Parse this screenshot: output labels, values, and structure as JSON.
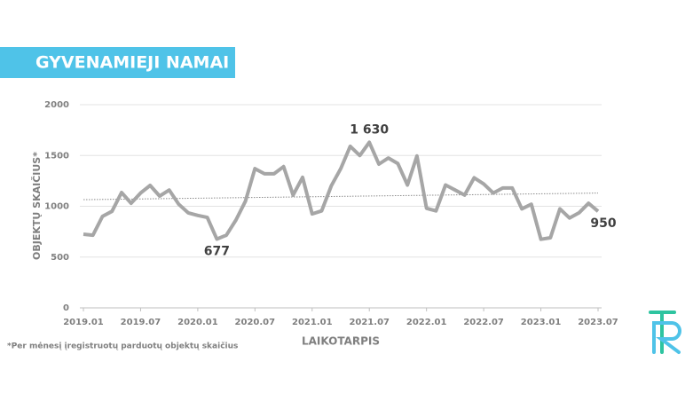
{
  "chart_data": {
    "type": "line",
    "title": "GYVENAMIEJI NAMAI",
    "x_label": "LAIKOTARPIS",
    "y_label": "OBJEKTŲ SKAIČIUS*",
    "footnote": "*Per mėnesį įregistruotų parduotų objektų skaičius",
    "categories": [
      "2019.01",
      null,
      null,
      null,
      null,
      null,
      "2019.07",
      null,
      null,
      null,
      null,
      null,
      "2020.01",
      null,
      null,
      null,
      null,
      null,
      "2020.07",
      null,
      null,
      null,
      null,
      null,
      "2021.01",
      null,
      null,
      null,
      null,
      null,
      "2021.07",
      null,
      null,
      null,
      null,
      null,
      "2022.01",
      null,
      null,
      null,
      null,
      null,
      "2022.07",
      null,
      null,
      null,
      null,
      null,
      "2023.01",
      null,
      null,
      null,
      null,
      null,
      "2023.07"
    ],
    "values": [
      725,
      715,
      900,
      950,
      1135,
      1030,
      1130,
      1205,
      1100,
      1160,
      1020,
      935,
      910,
      890,
      677,
      715,
      865,
      1050,
      1370,
      1320,
      1320,
      1390,
      1110,
      1285,
      925,
      955,
      1200,
      1370,
      1590,
      1500,
      1630,
      1415,
      1475,
      1420,
      1210,
      1495,
      980,
      955,
      1210,
      1160,
      1110,
      1280,
      1220,
      1130,
      1180,
      1180,
      975,
      1020,
      675,
      690,
      975,
      885,
      935,
      1030,
      950
    ],
    "value_labels": [
      null,
      null,
      null,
      null,
      null,
      null,
      null,
      null,
      null,
      null,
      null,
      null,
      null,
      null,
      "677",
      null,
      null,
      null,
      null,
      null,
      null,
      null,
      null,
      null,
      null,
      null,
      null,
      null,
      null,
      null,
      "1 630",
      null,
      null,
      null,
      null,
      null,
      null,
      null,
      null,
      null,
      null,
      null,
      null,
      null,
      null,
      null,
      null,
      null,
      null,
      null,
      null,
      null,
      null,
      null,
      "950"
    ],
    "trendline": [
      1065,
      1130
    ],
    "color": "#a6a6a6",
    "ylim": [
      0,
      2000
    ],
    "yticks": [
      0,
      500,
      1000,
      1500,
      2000
    ],
    "grid": true
  }
}
